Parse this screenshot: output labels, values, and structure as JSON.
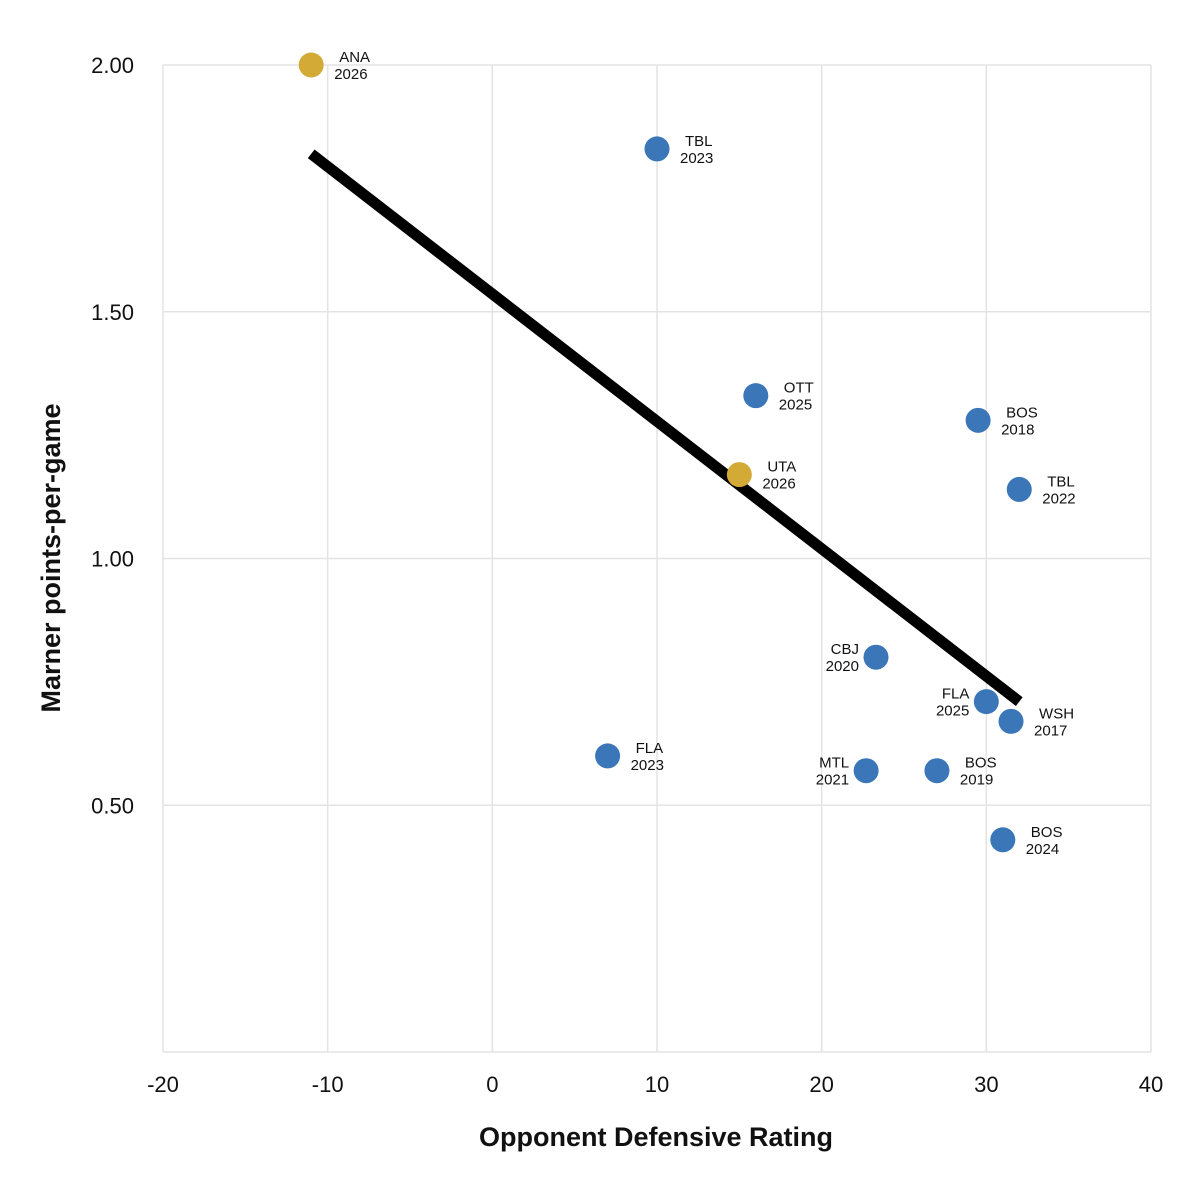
{
  "chart_data": {
    "type": "scatter",
    "title": "",
    "xlabel": "Opponent Defensive Rating",
    "ylabel": "Marner points-per-game",
    "xlim": [
      -20,
      40
    ],
    "ylim": [
      0,
      2.0
    ],
    "x_ticks": [
      -20,
      -10,
      0,
      10,
      20,
      30,
      40
    ],
    "y_ticks": [
      {
        "value": 0.5,
        "label": "0.50"
      },
      {
        "value": 1.0,
        "label": "1.00"
      },
      {
        "value": 1.5,
        "label": "1.50"
      },
      {
        "value": 2.0,
        "label": "2.00"
      }
    ],
    "grid": true,
    "colors": {
      "default": "#3a76b8",
      "highlight": "#d4aa37",
      "trend": "#000000"
    },
    "trendline": {
      "x": [
        -11,
        32
      ],
      "y": [
        1.82,
        0.71
      ]
    },
    "points": [
      {
        "team": "ANA",
        "year": "2026",
        "x": -11,
        "y": 2.0,
        "highlight": true,
        "label_side": "right"
      },
      {
        "team": "TBL",
        "year": "2023",
        "x": 10,
        "y": 1.83,
        "highlight": false,
        "label_side": "right"
      },
      {
        "team": "OTT",
        "year": "2025",
        "x": 16,
        "y": 1.33,
        "highlight": false,
        "label_side": "right"
      },
      {
        "team": "UTA",
        "year": "2026",
        "x": 15,
        "y": 1.17,
        "highlight": true,
        "label_side": "right"
      },
      {
        "team": "BOS",
        "year": "2018",
        "x": 29.5,
        "y": 1.28,
        "highlight": false,
        "label_side": "right"
      },
      {
        "team": "TBL",
        "year": "2022",
        "x": 32,
        "y": 1.14,
        "highlight": false,
        "label_side": "right"
      },
      {
        "team": "CBJ",
        "year": "2020",
        "x": 23.3,
        "y": 0.8,
        "highlight": false,
        "label_side": "left"
      },
      {
        "team": "FLA",
        "year": "2025",
        "x": 30,
        "y": 0.71,
        "highlight": false,
        "label_side": "left"
      },
      {
        "team": "WSH",
        "year": "2017",
        "x": 31.5,
        "y": 0.67,
        "highlight": false,
        "label_side": "right"
      },
      {
        "team": "FLA",
        "year": "2023",
        "x": 7,
        "y": 0.6,
        "highlight": false,
        "label_side": "right"
      },
      {
        "team": "MTL",
        "year": "2021",
        "x": 22.7,
        "y": 0.57,
        "highlight": false,
        "label_side": "left"
      },
      {
        "team": "BOS",
        "year": "2019",
        "x": 27,
        "y": 0.57,
        "highlight": false,
        "label_side": "right"
      },
      {
        "team": "BOS",
        "year": "2024",
        "x": 31,
        "y": 0.43,
        "highlight": false,
        "label_side": "right"
      }
    ]
  }
}
